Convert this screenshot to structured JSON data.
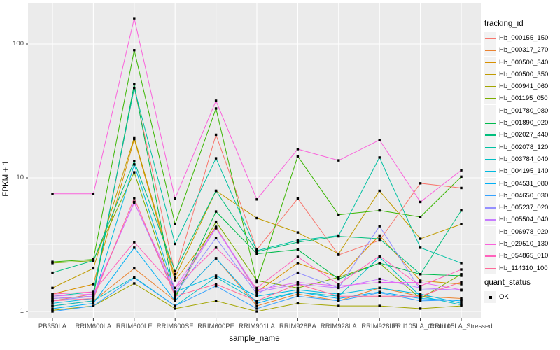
{
  "figure": {
    "x_axis_title": "sample_name",
    "y_axis_title": "FPKM + 1",
    "legend_tracking_title": "tracking_id",
    "legend_quant_title": "quant_status",
    "quant_status_label": "OK",
    "panel_background": "#EBEBEB",
    "grid_color": "#FFFFFF",
    "tick_label_color": "#4D4D4D",
    "point_color": "#000000"
  },
  "chart_data": {
    "type": "line",
    "title": "",
    "xlabel": "sample_name",
    "ylabel": "FPKM + 1",
    "y_scale": "log10",
    "ylim": [
      0.9,
      200
    ],
    "y_ticks": [
      1,
      10,
      100
    ],
    "y_minor_ticks": [
      3.162,
      31.62
    ],
    "grid": true,
    "legend_position": "right",
    "point_marker": {
      "shape": "filled-square",
      "color": "#000000",
      "status": "OK"
    },
    "categories": [
      "PB350LA",
      "RRIM600LA",
      "RRIM600LE",
      "RRIM600SE",
      "RRIM600PE",
      "RRIM901LA",
      "RRIM928BA",
      "RRIM928LA",
      "RRIM928LE",
      "RRII105LA_Control",
      "RRII105LA_Stressed"
    ],
    "series": [
      {
        "name": "Hb_000155_150",
        "color": "#F8766D",
        "values": [
          1.2,
          1.35,
          47,
          1.9,
          21,
          2.9,
          7.0,
          2.65,
          3.4,
          9.1,
          8.4
        ]
      },
      {
        "name": "Hb_000317_270",
        "color": "#EA8331",
        "values": [
          1.1,
          1.2,
          2.1,
          1.2,
          2.5,
          1.1,
          1.35,
          1.2,
          1.5,
          1.3,
          1.25
        ]
      },
      {
        "name": "Hb_000500_340",
        "color": "#D89000",
        "values": [
          1.35,
          1.6,
          19.5,
          1.7,
          4.3,
          1.4,
          2.3,
          1.8,
          3.7,
          1.7,
          1.6
        ]
      },
      {
        "name": "Hb_000500_350",
        "color": "#C09B00",
        "values": [
          1.5,
          2.1,
          20,
          1.8,
          8.0,
          5.0,
          3.9,
          2.7,
          8.0,
          3.5,
          4.5
        ]
      },
      {
        "name": "Hb_000941_060",
        "color": "#A3A500",
        "values": [
          1.02,
          1.1,
          1.62,
          1.05,
          1.2,
          1.0,
          1.15,
          1.1,
          1.1,
          1.05,
          1.1
        ]
      },
      {
        "name": "Hb_001195_050",
        "color": "#7CAE00",
        "values": [
          2.3,
          2.4,
          11,
          1.3,
          4.7,
          1.7,
          1.5,
          1.8,
          2.3,
          1.25,
          1.9
        ]
      },
      {
        "name": "Hb_001780_080",
        "color": "#39B600",
        "values": [
          2.35,
          2.45,
          90,
          4.5,
          33,
          1.65,
          14.5,
          5.3,
          5.7,
          5.1,
          10.2
        ]
      },
      {
        "name": "Hb_001890_020",
        "color": "#00BB4E",
        "values": [
          1.25,
          1.3,
          50,
          1.25,
          5.6,
          2.7,
          2.9,
          1.75,
          2.3,
          1.9,
          1.85
        ]
      },
      {
        "name": "Hb_002027_440",
        "color": "#00BF7D",
        "values": [
          1.95,
          2.4,
          13.3,
          2.0,
          8.0,
          2.8,
          3.3,
          3.65,
          3.5,
          1.9,
          5.7
        ]
      },
      {
        "name": "Hb_002078_120",
        "color": "#00C1A3",
        "values": [
          1.3,
          1.4,
          47,
          3.2,
          14,
          2.85,
          3.4,
          3.7,
          14.2,
          3.0,
          2.3
        ]
      },
      {
        "name": "Hb_003784_040",
        "color": "#00BFC4",
        "values": [
          1.1,
          1.2,
          1.8,
          1.1,
          1.8,
          1.2,
          1.4,
          1.3,
          2.55,
          1.3,
          1.12
        ]
      },
      {
        "name": "Hb_004195_140",
        "color": "#00BAE0",
        "values": [
          1.15,
          1.25,
          12.6,
          1.4,
          1.85,
          1.3,
          1.45,
          1.35,
          1.5,
          1.35,
          1.15
        ]
      },
      {
        "name": "Hb_004531_080",
        "color": "#00B0F6",
        "values": [
          1.05,
          1.15,
          3.0,
          1.2,
          2.5,
          1.15,
          1.4,
          1.25,
          1.4,
          1.25,
          1.2
        ]
      },
      {
        "name": "Hb_004650_030",
        "color": "#35A2FF",
        "values": [
          1.0,
          1.1,
          1.78,
          1.1,
          1.55,
          1.05,
          1.3,
          1.2,
          1.38,
          1.2,
          1.22
        ]
      },
      {
        "name": "Hb_005237_020",
        "color": "#9590FF",
        "values": [
          1.2,
          1.3,
          6.6,
          1.35,
          3.55,
          1.35,
          1.95,
          1.5,
          4.35,
          1.45,
          1.45
        ]
      },
      {
        "name": "Hb_005504_040",
        "color": "#C77CFF",
        "values": [
          1.25,
          1.3,
          6.6,
          1.4,
          4.2,
          1.4,
          1.6,
          1.5,
          1.75,
          1.5,
          1.44
        ]
      },
      {
        "name": "Hb_006978_020",
        "color": "#E76BF3",
        "values": [
          1.3,
          1.35,
          6.5,
          1.5,
          4.25,
          1.45,
          1.65,
          1.55,
          1.65,
          1.65,
          1.45
        ]
      },
      {
        "name": "Hb_029510_130",
        "color": "#FA62DB",
        "values": [
          7.6,
          7.6,
          156,
          7.0,
          37.7,
          6.9,
          16.4,
          13.5,
          19.2,
          6.6,
          11.4
        ]
      },
      {
        "name": "Hb_054865_010",
        "color": "#FF62BC",
        "values": [
          1.35,
          1.4,
          3.3,
          1.5,
          3.0,
          1.5,
          2.56,
          1.6,
          2.6,
          1.55,
          2.06
        ]
      },
      {
        "name": "Hb_114310_100",
        "color": "#FF6A98",
        "values": [
          1.2,
          1.25,
          7.05,
          1.3,
          1.6,
          1.2,
          1.6,
          1.3,
          1.3,
          1.3,
          1.66
        ]
      }
    ]
  }
}
